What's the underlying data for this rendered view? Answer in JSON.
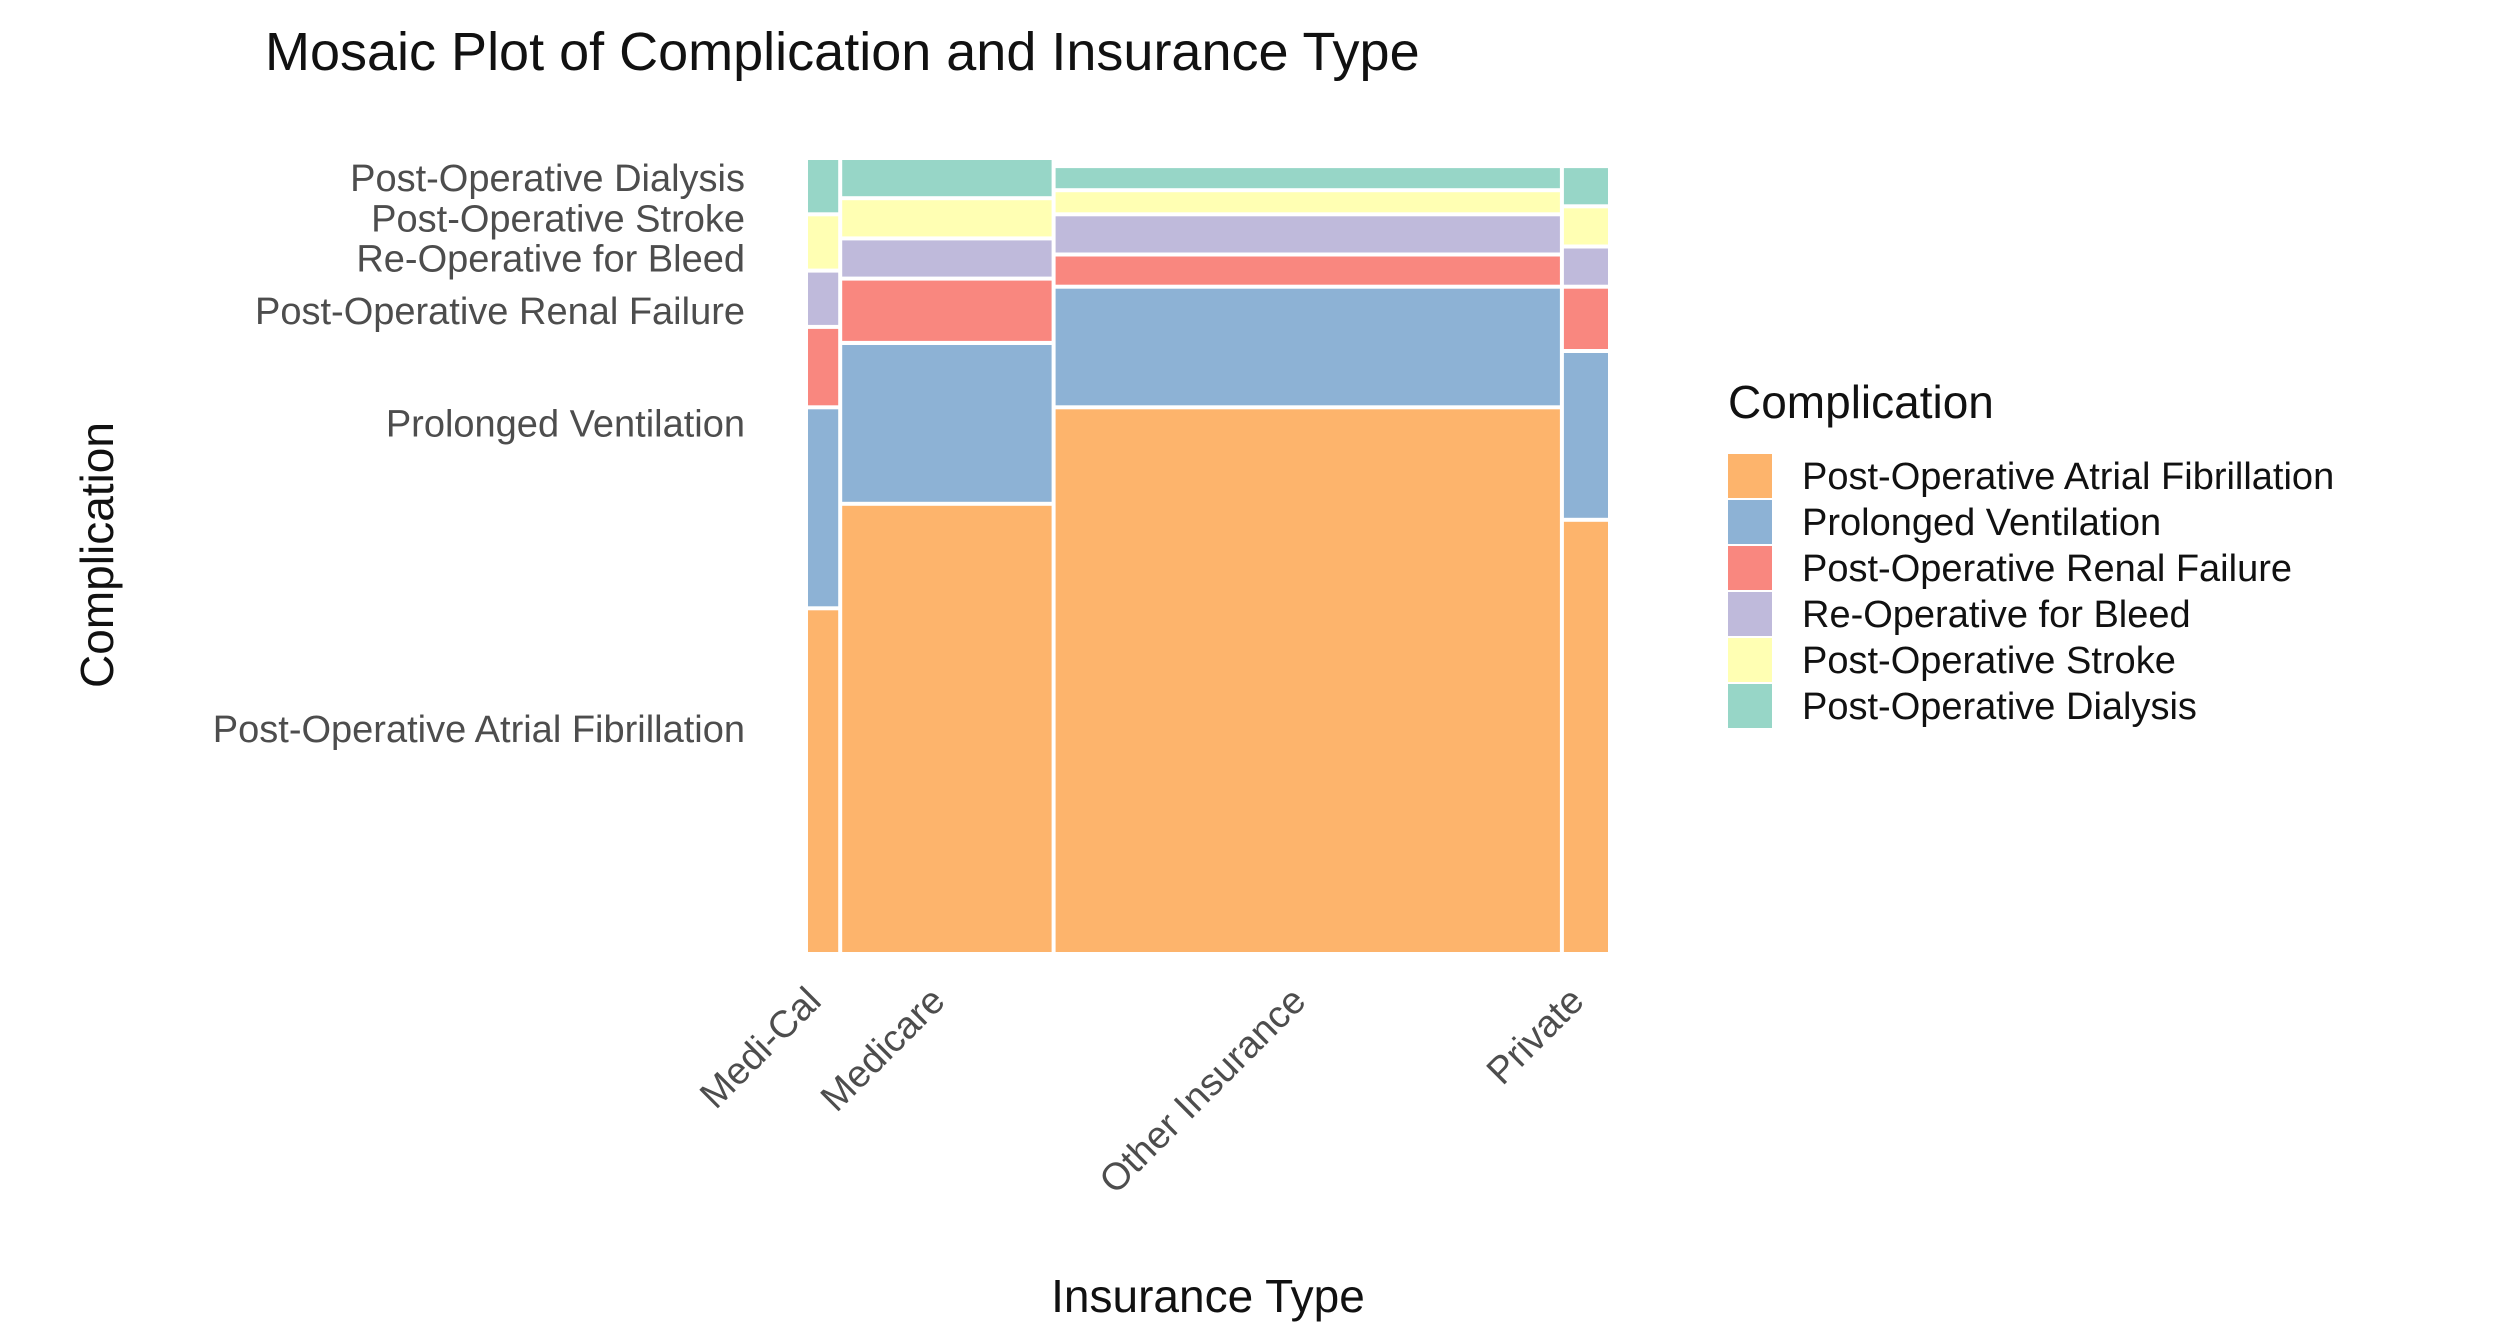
{
  "chart_data": {
    "type": "mosaic",
    "title": "Mosaic Plot of Complication and Insurance Type",
    "xlabel": "Insurance Type",
    "ylabel": "Complication",
    "legend": {
      "title": "Complication",
      "position": "right"
    },
    "complications": [
      {
        "name": "Post-Operative Atrial Fibrillation",
        "color": "#FDB46C"
      },
      {
        "name": "Prolonged Ventilation",
        "color": "#8DB2D5"
      },
      {
        "name": "Post-Operative Renal Failure",
        "color": "#F9877F"
      },
      {
        "name": "Re-Operative for Bleed",
        "color": "#BFBADB"
      },
      {
        "name": "Post-Operative Stroke",
        "color": "#FFFFB3"
      },
      {
        "name": "Post-Operative Dialysis",
        "color": "#97D6C7"
      }
    ],
    "y_axis_labels": [
      "Post-Operative Atrial Fibrillation",
      "Prolonged Ventilation",
      "Post-Operative Renal Failure",
      "Re-Operative for Bleed",
      "Post-Operative Stroke",
      "Post-Operative Dialysis"
    ],
    "insurance_types": [
      {
        "name": "Medi-Cal",
        "share": 0.042,
        "proportions": [
          0.43,
          0.25,
          0.1,
          0.07,
          0.07,
          0.07
        ]
      },
      {
        "name": "Medicare",
        "share": 0.262,
        "proportions": [
          0.56,
          0.2,
          0.08,
          0.05,
          0.05,
          0.05
        ]
      },
      {
        "name": "Other Insurance",
        "share": 0.624,
        "proportions": [
          0.68,
          0.15,
          0.04,
          0.05,
          0.03,
          0.03
        ]
      },
      {
        "name": "Private",
        "share": 0.059,
        "proportions": [
          0.54,
          0.21,
          0.08,
          0.05,
          0.05,
          0.05
        ]
      }
    ],
    "grid": false
  }
}
